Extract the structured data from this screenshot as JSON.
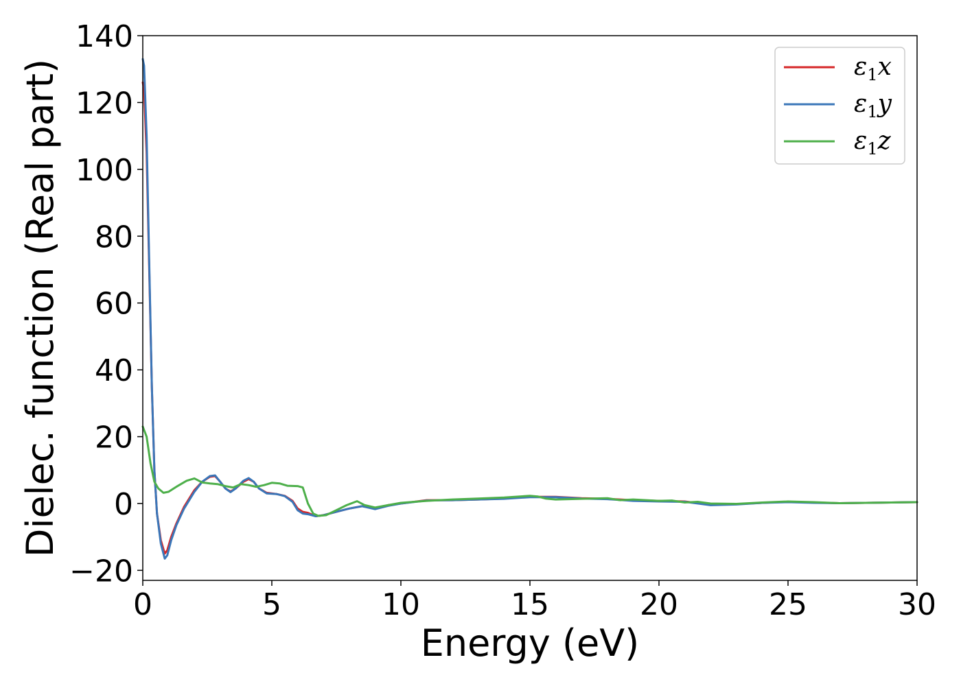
{
  "chart_data": {
    "type": "line",
    "xlabel": "Energy (eV)",
    "ylabel": "Dielec. function (Real part)",
    "xlim": [
      0,
      30
    ],
    "ylim": [
      -23,
      140
    ],
    "xticks": [
      0,
      5,
      10,
      15,
      20,
      25,
      30
    ],
    "yticks": [
      -20,
      0,
      20,
      40,
      60,
      80,
      100,
      120,
      140
    ],
    "xtick_labels": [
      "0",
      "5",
      "10",
      "15",
      "20",
      "25",
      "30"
    ],
    "ytick_labels": [
      "−20",
      "0",
      "20",
      "40",
      "60",
      "80",
      "100",
      "120",
      "140"
    ],
    "grid": false,
    "legend_position": "top-right",
    "series": [
      {
        "name": "ε1x",
        "legend_main": "ε",
        "legend_sub": "1",
        "legend_tail": "x",
        "color": "#d62728",
        "points": [
          [
            0,
            126
          ],
          [
            0.05,
            124
          ],
          [
            0.15,
            105
          ],
          [
            0.25,
            70
          ],
          [
            0.35,
            35
          ],
          [
            0.45,
            10
          ],
          [
            0.55,
            -3
          ],
          [
            0.7,
            -11
          ],
          [
            0.85,
            -15
          ],
          [
            0.95,
            -14
          ],
          [
            1.1,
            -10
          ],
          [
            1.3,
            -6
          ],
          [
            1.6,
            -1
          ],
          [
            2.0,
            4
          ],
          [
            2.3,
            6.5
          ],
          [
            2.6,
            8
          ],
          [
            2.8,
            8.2
          ],
          [
            3.0,
            6.5
          ],
          [
            3.2,
            4.5
          ],
          [
            3.4,
            3.6
          ],
          [
            3.6,
            4.5
          ],
          [
            3.9,
            6.5
          ],
          [
            4.1,
            7.3
          ],
          [
            4.3,
            6.5
          ],
          [
            4.5,
            4.5
          ],
          [
            4.8,
            3.2
          ],
          [
            5.2,
            2.8
          ],
          [
            5.5,
            2.3
          ],
          [
            5.8,
            0.8
          ],
          [
            6.0,
            -1.5
          ],
          [
            6.2,
            -2.5
          ],
          [
            6.4,
            -2.8
          ],
          [
            6.7,
            -3.8
          ],
          [
            7.0,
            -3.5
          ],
          [
            7.5,
            -2.5
          ],
          [
            8.0,
            -1.5
          ],
          [
            8.5,
            -0.8
          ],
          [
            9.0,
            -1.5
          ],
          [
            9.5,
            -0.5
          ],
          [
            10,
            0
          ],
          [
            11,
            1.0
          ],
          [
            12,
            1.0
          ],
          [
            13,
            1.2
          ],
          [
            14,
            1.5
          ],
          [
            15,
            2.0
          ],
          [
            16,
            2.0
          ],
          [
            17,
            1.6
          ],
          [
            18,
            1.4
          ],
          [
            19,
            1.0
          ],
          [
            20,
            0.8
          ],
          [
            21,
            0.6
          ],
          [
            22,
            -0.4
          ],
          [
            23,
            -0.2
          ],
          [
            24,
            0.2
          ],
          [
            25,
            0.5
          ],
          [
            26,
            0.3
          ],
          [
            27,
            0.1
          ],
          [
            28,
            0.2
          ],
          [
            29,
            0.3
          ],
          [
            30,
            0.4
          ]
        ]
      },
      {
        "name": "ε1y",
        "legend_main": "ε",
        "legend_sub": "1",
        "legend_tail": "y",
        "color": "#3a76b8",
        "points": [
          [
            0,
            133
          ],
          [
            0.05,
            131
          ],
          [
            0.15,
            110
          ],
          [
            0.25,
            72
          ],
          [
            0.35,
            35
          ],
          [
            0.45,
            10
          ],
          [
            0.55,
            -3
          ],
          [
            0.7,
            -12
          ],
          [
            0.85,
            -16.5
          ],
          [
            0.95,
            -15.5
          ],
          [
            1.1,
            -11
          ],
          [
            1.3,
            -6.5
          ],
          [
            1.6,
            -1.5
          ],
          [
            2.0,
            3.5
          ],
          [
            2.3,
            6.5
          ],
          [
            2.6,
            8.2
          ],
          [
            2.8,
            8.4
          ],
          [
            3.0,
            6.5
          ],
          [
            3.2,
            4.5
          ],
          [
            3.4,
            3.4
          ],
          [
            3.6,
            4.5
          ],
          [
            3.9,
            6.8
          ],
          [
            4.1,
            7.6
          ],
          [
            4.3,
            6.5
          ],
          [
            4.5,
            4.5
          ],
          [
            4.8,
            3.0
          ],
          [
            5.2,
            2.8
          ],
          [
            5.5,
            2.2
          ],
          [
            5.8,
            0.5
          ],
          [
            6.0,
            -2.0
          ],
          [
            6.2,
            -3.0
          ],
          [
            6.4,
            -3.2
          ],
          [
            6.7,
            -3.8
          ],
          [
            7.0,
            -3.5
          ],
          [
            7.5,
            -2.5
          ],
          [
            8.0,
            -1.5
          ],
          [
            8.5,
            -0.8
          ],
          [
            9.0,
            -1.7
          ],
          [
            9.5,
            -0.7
          ],
          [
            10,
            0
          ],
          [
            11,
            0.9
          ],
          [
            12,
            1.0
          ],
          [
            13,
            1.2
          ],
          [
            14,
            1.4
          ],
          [
            15,
            1.9
          ],
          [
            16,
            1.9
          ],
          [
            17,
            1.5
          ],
          [
            18,
            1.3
          ],
          [
            19,
            0.8
          ],
          [
            20,
            0.6
          ],
          [
            21,
            0.5
          ],
          [
            22,
            -0.5
          ],
          [
            23,
            -0.3
          ],
          [
            24,
            0.2
          ],
          [
            25,
            0.4
          ],
          [
            26,
            0.2
          ],
          [
            27,
            0.1
          ],
          [
            28,
            0.2
          ],
          [
            29,
            0.3
          ],
          [
            30,
            0.4
          ]
        ]
      },
      {
        "name": "ε1z",
        "legend_main": "ε",
        "legend_sub": "1",
        "legend_tail": "z",
        "color": "#4daf4a",
        "points": [
          [
            0,
            23
          ],
          [
            0.15,
            20
          ],
          [
            0.3,
            12
          ],
          [
            0.45,
            6.5
          ],
          [
            0.6,
            4.5
          ],
          [
            0.8,
            3.2
          ],
          [
            1.0,
            3.5
          ],
          [
            1.3,
            5
          ],
          [
            1.7,
            6.8
          ],
          [
            2.0,
            7.5
          ],
          [
            2.3,
            6.3
          ],
          [
            2.6,
            6.0
          ],
          [
            2.9,
            5.8
          ],
          [
            3.2,
            5.2
          ],
          [
            3.5,
            4.8
          ],
          [
            3.8,
            5.8
          ],
          [
            4.1,
            5.5
          ],
          [
            4.4,
            5.0
          ],
          [
            4.7,
            5.5
          ],
          [
            5.0,
            6.2
          ],
          [
            5.3,
            6.0
          ],
          [
            5.6,
            5.3
          ],
          [
            6.0,
            5.2
          ],
          [
            6.2,
            4.8
          ],
          [
            6.4,
            0
          ],
          [
            6.6,
            -3.0
          ],
          [
            6.8,
            -3.7
          ],
          [
            7.1,
            -3.5
          ],
          [
            7.5,
            -2.0
          ],
          [
            7.9,
            -0.5
          ],
          [
            8.3,
            0.7
          ],
          [
            8.6,
            -0.5
          ],
          [
            9.0,
            -1.2
          ],
          [
            9.5,
            -0.5
          ],
          [
            10,
            0.2
          ],
          [
            11,
            0.8
          ],
          [
            12,
            1.2
          ],
          [
            13,
            1.5
          ],
          [
            14,
            1.8
          ],
          [
            15,
            2.3
          ],
          [
            15.3,
            2.1
          ],
          [
            15.6,
            1.5
          ],
          [
            16,
            1.2
          ],
          [
            17,
            1.4
          ],
          [
            18,
            1.6
          ],
          [
            18.5,
            1.0
          ],
          [
            19,
            1.2
          ],
          [
            20,
            0.8
          ],
          [
            20.5,
            0.9
          ],
          [
            21,
            0.3
          ],
          [
            21.5,
            0.5
          ],
          [
            22,
            0
          ],
          [
            23,
            -0.1
          ],
          [
            24,
            0.3
          ],
          [
            25,
            0.6
          ],
          [
            26,
            0.4
          ],
          [
            27,
            0.1
          ],
          [
            28,
            0.2
          ],
          [
            29,
            0.3
          ],
          [
            30,
            0.4
          ]
        ]
      }
    ]
  }
}
